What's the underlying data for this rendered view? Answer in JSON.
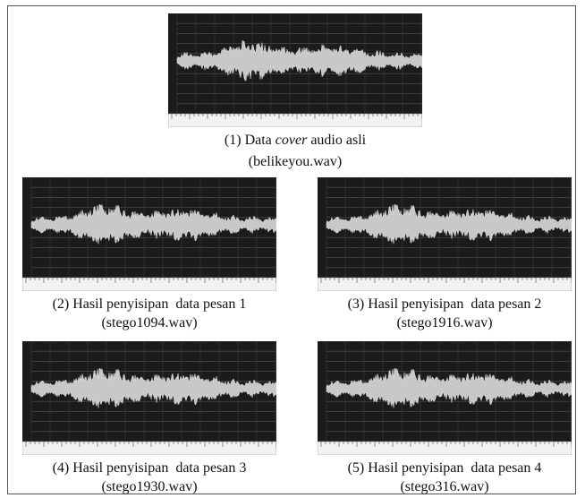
{
  "panels": [
    {
      "caption": [
        {
          "text": "(1) Data "
        },
        {
          "text": "cover",
          "italic": true
        },
        {
          "text": " audio asli"
        }
      ],
      "file": "(belikeyou.wav)"
    },
    {
      "caption": [
        {
          "text": "(2) Hasil penyisipan  data pesan 1"
        }
      ],
      "file": "(stego1094.wav)"
    },
    {
      "caption": [
        {
          "text": "(3) Hasil penyisipan  data pesan 2"
        }
      ],
      "file": "(stego1916.wav)"
    },
    {
      "caption": [
        {
          "text": "(4) Hasil penyisipan  data pesan 3"
        }
      ],
      "file": "(stego1930.wav)"
    },
    {
      "caption": [
        {
          "text": "(5) Hasil penyisipan  data pesan 4"
        }
      ],
      "file": "(stego316.wav)"
    }
  ]
}
